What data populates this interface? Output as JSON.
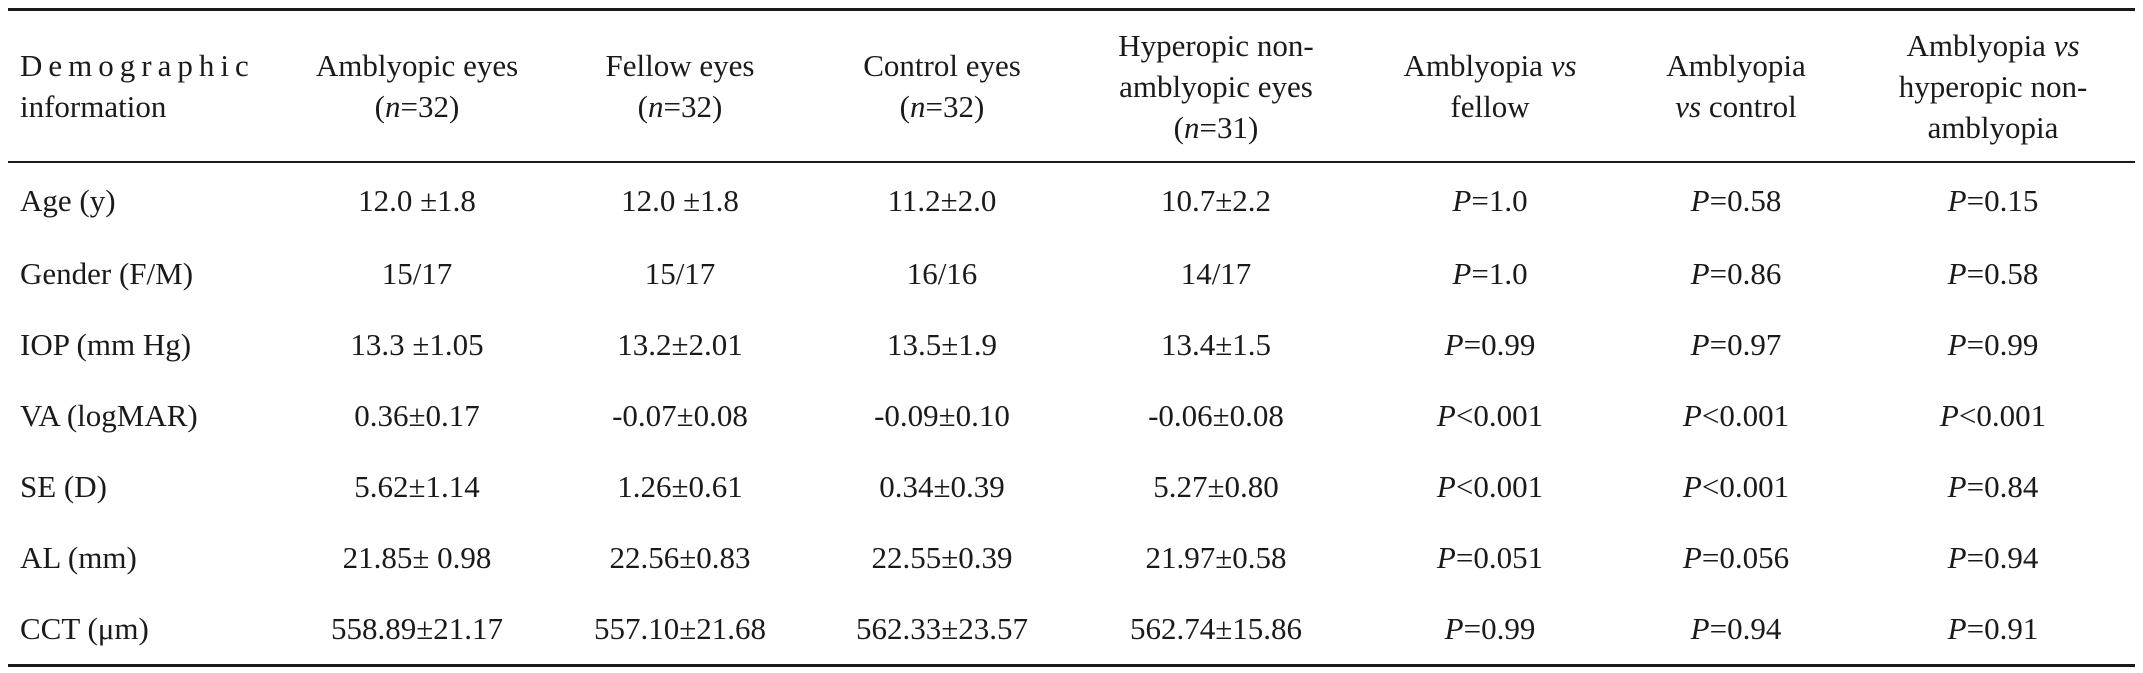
{
  "table": {
    "headers": [
      {
        "lines": [
          {
            "text": "Demographic",
            "spaced": true
          },
          {
            "text": "information"
          }
        ]
      },
      {
        "lines": [
          {
            "text": "Amblyopic eyes"
          },
          {
            "pre": "(",
            "ital": "n",
            "post": "=32)"
          }
        ]
      },
      {
        "lines": [
          {
            "text": "Fellow eyes"
          },
          {
            "pre": "(",
            "ital": "n",
            "post": "=32)"
          }
        ]
      },
      {
        "lines": [
          {
            "text": "Control eyes"
          },
          {
            "pre": "(",
            "ital": "n",
            "post": "=32)"
          }
        ]
      },
      {
        "lines": [
          {
            "text": "Hyperopic non-"
          },
          {
            "text": "amblyopic eyes"
          },
          {
            "pre": "(",
            "ital": "n",
            "post": "=31)"
          }
        ]
      },
      {
        "lines": [
          {
            "pre": "Amblyopia ",
            "ital": "vs",
            "post": ""
          },
          {
            "text": "fellow"
          }
        ]
      },
      {
        "lines": [
          {
            "text": "Amblyopia"
          },
          {
            "pre": "",
            "ital": "vs",
            "post": " control"
          }
        ]
      },
      {
        "lines": [
          {
            "pre": "Amblyopia ",
            "ital": "vs",
            "post": ""
          },
          {
            "text": "hyperopic non-"
          },
          {
            "text": "amblyopia"
          }
        ]
      }
    ],
    "rows": [
      {
        "label": "Age (y)",
        "amblyopic": "12.0 ±1.8",
        "fellow": "12.0 ±1.8",
        "control": "11.2±2.0",
        "hyperopic": "10.7±2.2",
        "p_fellow": "=1.0",
        "p_control": "=0.58",
        "p_hyperopic": "=0.15"
      },
      {
        "label": "Gender (F/M)",
        "amblyopic": "15/17",
        "fellow": "15/17",
        "control": "16/16",
        "hyperopic": "14/17",
        "p_fellow": "=1.0",
        "p_control": "=0.86",
        "p_hyperopic": "=0.58"
      },
      {
        "label": "IOP (mm Hg)",
        "amblyopic": "13.3 ±1.05",
        "fellow": "13.2±2.01",
        "control": "13.5±1.9",
        "hyperopic": "13.4±1.5",
        "p_fellow": "=0.99",
        "p_control": "=0.97",
        "p_hyperopic": "=0.99"
      },
      {
        "label": "VA (logMAR)",
        "amblyopic": "0.36±0.17",
        "fellow": "-0.07±0.08",
        "control": "-0.09±0.10",
        "hyperopic": "-0.06±0.08",
        "p_fellow": "<0.001",
        "p_control": "<0.001",
        "p_hyperopic": "<0.001"
      },
      {
        "label": "SE (D)",
        "amblyopic": "5.62±1.14",
        "fellow": "1.26±0.61",
        "control": "0.34±0.39",
        "hyperopic": "5.27±0.80",
        "p_fellow": "<0.001",
        "p_control": "<0.001",
        "p_hyperopic": "=0.84"
      },
      {
        "label": "AL (mm)",
        "amblyopic": "21.85± 0.98",
        "fellow": "22.56±0.83",
        "control": "22.55±0.39",
        "hyperopic": "21.97±0.58",
        "p_fellow": "=0.051",
        "p_control": "=0.056",
        "p_hyperopic": "=0.94"
      },
      {
        "label": "CCT (μm)",
        "amblyopic": "558.89±21.17",
        "fellow": "557.10±21.68",
        "control": "562.33±23.57",
        "hyperopic": "562.74±15.86",
        "p_fellow": "=0.99",
        "p_control": "=0.94",
        "p_hyperopic": "=0.91"
      }
    ],
    "p_symbol": "P"
  }
}
